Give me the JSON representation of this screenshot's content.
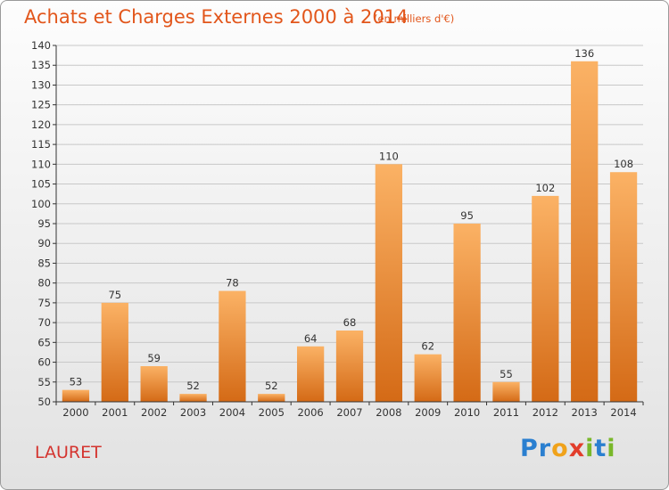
{
  "header": {
    "title": "Achats et Charges Externes 2000 à 2014",
    "unit": "(en milliers d'€)"
  },
  "footer": {
    "commune": "LAURET",
    "logo": "Proxiti",
    "logo_letters": [
      "P",
      "r",
      "o",
      "x",
      "i",
      "t",
      "i"
    ],
    "logo_colors": [
      "#2a7fd0",
      "#2a7fd0",
      "#f0a21a",
      "#e23d2b",
      "#79b82a",
      "#2a7fd0",
      "#79b82a"
    ]
  },
  "colors": {
    "bar_light": "#fbb265",
    "bar_dark": "#d46a16",
    "axis": "#333333",
    "grid": "#c8c8c8",
    "text": "#333333"
  },
  "chart_data": {
    "type": "bar",
    "title": "Achats et Charges Externes 2000 à 2014",
    "subtitle": "(en milliers d'€)",
    "categories": [
      "2000",
      "2001",
      "2002",
      "2003",
      "2004",
      "2005",
      "2006",
      "2007",
      "2008",
      "2009",
      "2010",
      "2011",
      "2012",
      "2013",
      "2014"
    ],
    "values": [
      53,
      75,
      59,
      52,
      78,
      52,
      64,
      68,
      110,
      62,
      95,
      55,
      102,
      136,
      108
    ],
    "data_labels": [
      "53",
      "75",
      "59",
      "52",
      "78",
      "52",
      "64",
      "68",
      "110",
      "62",
      "95",
      "55",
      "102",
      "136",
      "108"
    ],
    "yticks": [
      50,
      55,
      60,
      65,
      70,
      75,
      80,
      85,
      90,
      95,
      100,
      105,
      110,
      115,
      120,
      125,
      130,
      135,
      140
    ],
    "ylim": [
      50,
      140
    ],
    "grid": true
  }
}
